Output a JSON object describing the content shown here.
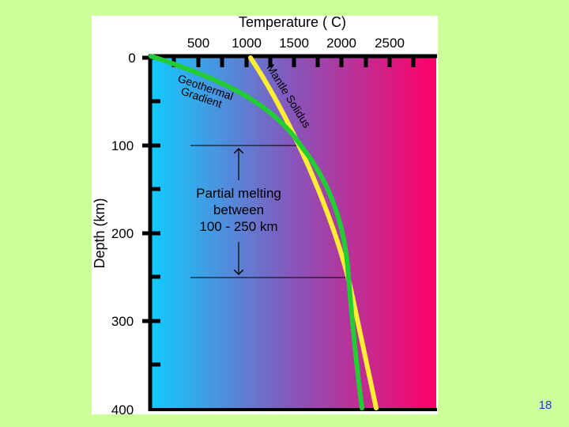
{
  "slide": {
    "page_number": "18",
    "background": "#ccff99"
  },
  "figure": {
    "x_axis": {
      "title": "Temperature ( C)",
      "ticks": [
        "500",
        "1000",
        "1500",
        "2000",
        "2500"
      ]
    },
    "y_axis": {
      "title": "Depth (km)",
      "ticks": [
        "0",
        "100",
        "200",
        "300",
        "400"
      ]
    },
    "curves": {
      "geotherm_label_line1": "Geothermal",
      "geotherm_label_line2": "Gradient",
      "solidus_label": "Mantle Solidus",
      "geotherm_color": "#22cc33",
      "solidus_color": "#ffee33"
    },
    "annotation": {
      "line1": "Partial melting",
      "line2": "between",
      "line3": "100 - 250 km"
    },
    "gradient_colors": [
      "#11ccff",
      "#8855bb",
      "#ff0066"
    ]
  }
}
